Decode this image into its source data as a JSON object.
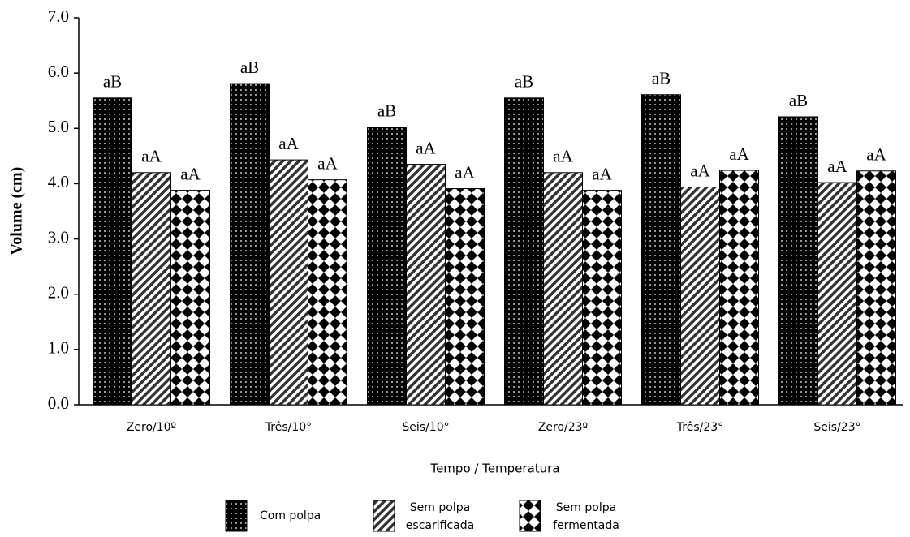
{
  "chart_data": {
    "type": "bar",
    "xlabel": "Tempo / Temperatura",
    "ylabel": "Volume (cm)",
    "categories": [
      "Zero/10º",
      "Três/10°",
      "Seis/10°",
      "Zero/23º",
      "Três/23°",
      "Seis/23°"
    ],
    "series": [
      {
        "name": "Com polpa",
        "color": "#000000",
        "pattern": "dots",
        "values": [
          5.55,
          5.81,
          5.02,
          5.55,
          5.61,
          5.21
        ],
        "annotations": [
          "aB",
          "aB",
          "aB",
          "aB",
          "aB",
          "aB"
        ]
      },
      {
        "name": "Sem polpa escarificada",
        "color": "#000000",
        "pattern": "stripes",
        "values": [
          4.2,
          4.43,
          4.35,
          4.2,
          3.94,
          4.02
        ],
        "annotations": [
          "aA",
          "aA",
          "aA",
          "aA",
          "aA",
          "aA"
        ]
      },
      {
        "name": "Sem polpa fermentada",
        "color": "#000000",
        "pattern": "diamonds",
        "values": [
          3.88,
          4.07,
          3.91,
          3.88,
          4.24,
          4.23
        ],
        "annotations": [
          "aA",
          "aA",
          "aA",
          "aA",
          "aA",
          "aA"
        ]
      }
    ],
    "ylim": [
      0,
      7
    ],
    "yticks": [
      {
        "value": 0,
        "label": "0.0"
      },
      {
        "value": 1,
        "label": "1.0"
      },
      {
        "value": 2,
        "label": "2.0"
      },
      {
        "value": 3,
        "label": "3.0"
      },
      {
        "value": 4,
        "label": "4.0"
      },
      {
        "value": 5,
        "label": "5.0"
      },
      {
        "value": 6,
        "label": "6.0"
      },
      {
        "value": 7,
        "label": "7.0"
      }
    ],
    "grid": false
  }
}
